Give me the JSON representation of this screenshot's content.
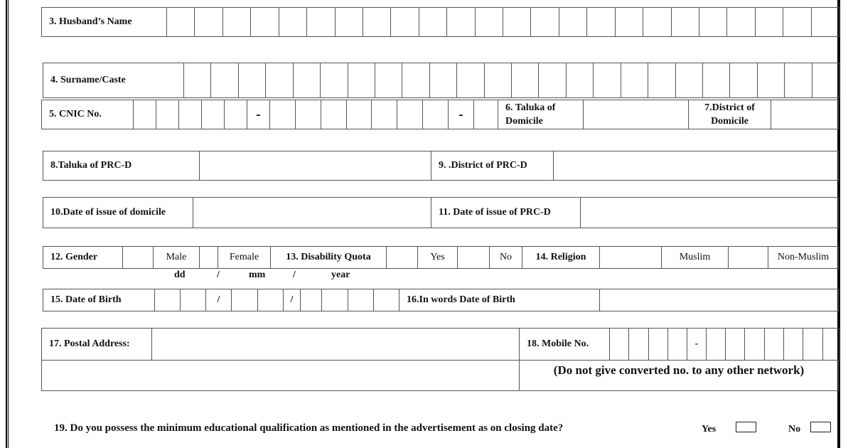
{
  "fields": {
    "husband": "3.  Husband’s Name",
    "surname": "4. Surname/Caste",
    "cnic": "5. CNIC No.",
    "dash": "-",
    "taluka_domicile_1": "6. Taluka of",
    "taluka_domicile_2": "Domicile",
    "district_domicile_1": "7.District of",
    "district_domicile_2": "Domicile",
    "taluka_prc": "8.Taluka of PRC-D",
    "district_prc": "9. .District of PRC-D",
    "date_domicile": "10.Date of issue of domicile",
    "date_prc": "11. Date of issue of PRC-D",
    "gender": "12.  Gender",
    "male": "Male",
    "female": "Female",
    "disability": "13. Disability Quota",
    "yes": "Yes",
    "no": "No",
    "religion": "14. Religion",
    "muslim": "Muslim",
    "non_muslim": "Non-Muslim",
    "dd": "dd",
    "slash": "/",
    "mm": "mm",
    "year": "year",
    "dob": "15. Date of Birth",
    "dob_words": "16.In words Date of Birth",
    "postal": "17. Postal Address:",
    "mobile": "18.  Mobile No.",
    "mobile_note": "(Do not give converted no. to any other network)",
    "q19": "19. Do you possess the minimum educational qualification as mentioned in the advertisement as on closing date?",
    "q19_yes": "Yes",
    "q19_no": "No"
  }
}
